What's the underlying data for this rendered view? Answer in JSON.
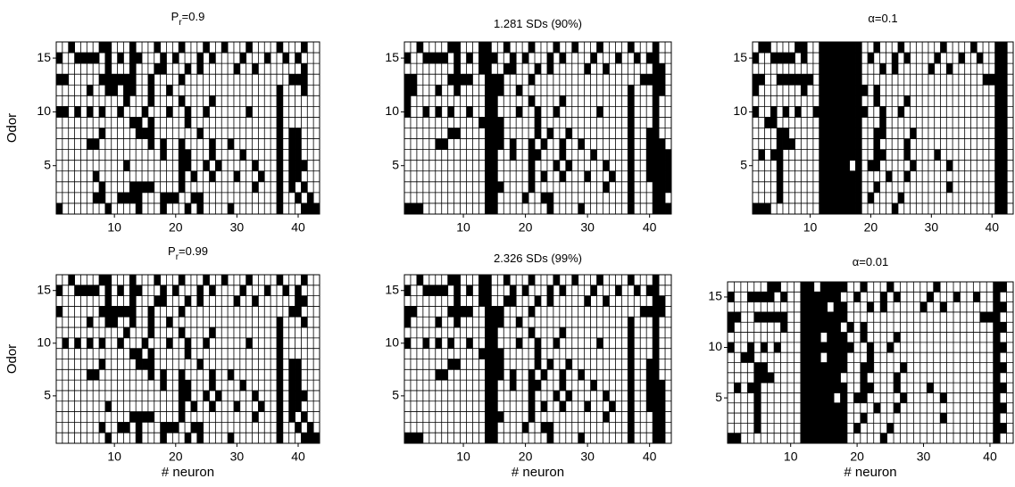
{
  "chart_data": [
    {
      "type": "heatmap",
      "title_main": "P",
      "title_subscript": "r",
      "title_suffix": "=0.9",
      "ylabel": "Odor",
      "xlim": [
        0.5,
        43.5
      ],
      "ylim": [
        0.5,
        16.5
      ],
      "xticks": [
        10,
        20,
        30,
        40
      ],
      "yticks": [
        5,
        10,
        15
      ],
      "color": "#000000",
      "rows": [
        [
          3,
          8,
          9,
          13,
          17,
          21,
          25,
          28,
          32,
          37,
          41
        ],
        [
          1,
          4,
          5,
          6,
          7,
          9,
          11,
          13,
          14,
          18,
          20,
          24,
          26,
          31,
          35,
          38,
          40
        ],
        [
          9,
          13,
          17,
          18,
          22,
          24,
          30,
          33,
          41
        ],
        [
          1,
          2,
          8,
          9,
          10,
          11,
          12,
          13,
          16,
          21,
          39,
          40,
          41
        ],
        [
          6,
          9,
          10,
          12,
          13,
          16,
          19,
          37,
          41
        ],
        [
          12,
          16,
          21,
          26,
          37
        ],
        [
          1,
          2,
          4,
          6,
          8,
          11,
          15,
          19,
          22,
          25,
          32,
          37
        ],
        [
          13,
          14,
          16,
          22,
          37
        ],
        [
          8,
          14,
          15,
          16,
          24,
          37,
          39,
          40
        ],
        [
          6,
          7,
          16,
          18,
          21,
          26,
          29,
          37,
          39,
          40
        ],
        [
          18,
          21,
          22,
          26,
          31,
          37,
          39,
          40
        ],
        [
          12,
          21,
          22,
          25,
          27,
          33,
          37,
          39,
          40,
          41
        ],
        [
          7,
          21,
          23,
          26,
          30,
          34,
          37,
          39,
          40
        ],
        [
          8,
          13,
          14,
          15,
          16,
          21,
          33,
          37,
          39,
          41
        ],
        [
          7,
          8,
          11,
          12,
          13,
          14,
          18,
          19,
          20,
          23,
          24,
          37,
          40,
          42
        ],
        [
          1,
          9,
          14,
          18,
          22,
          24,
          29,
          37,
          41,
          42,
          43
        ]
      ]
    },
    {
      "type": "heatmap",
      "title_main": "1.281 SDs (90%)",
      "xlim": [
        0.5,
        43.5
      ],
      "ylim": [
        0.5,
        16.5
      ],
      "xticks": [
        10,
        20,
        30,
        40
      ],
      "yticks": [
        5,
        10,
        15
      ],
      "color": "#000000",
      "rows": [
        [
          3,
          8,
          9,
          13,
          14,
          17,
          21,
          25,
          28,
          32,
          37,
          41
        ],
        [
          1,
          4,
          5,
          6,
          7,
          9,
          11,
          13,
          14,
          15,
          18,
          20,
          24,
          26,
          31,
          35,
          38,
          40,
          41
        ],
        [
          9,
          13,
          14,
          17,
          18,
          22,
          24,
          30,
          33,
          41,
          42
        ],
        [
          1,
          2,
          8,
          9,
          10,
          11,
          14,
          15,
          16,
          21,
          39,
          40,
          41,
          42
        ],
        [
          1,
          2,
          6,
          9,
          14,
          15,
          16,
          19,
          37,
          41,
          42
        ],
        [
          1,
          14,
          15,
          21,
          26,
          37,
          41
        ],
        [
          1,
          4,
          6,
          8,
          11,
          14,
          15,
          19,
          22,
          25,
          32,
          37,
          41
        ],
        [
          13,
          14,
          15,
          16,
          22,
          37,
          41
        ],
        [
          8,
          9,
          14,
          15,
          16,
          22,
          24,
          27,
          37,
          40,
          41
        ],
        [
          6,
          7,
          14,
          15,
          16,
          18,
          21,
          23,
          26,
          29,
          37,
          40,
          41,
          42
        ],
        [
          14,
          15,
          18,
          21,
          22,
          26,
          31,
          37,
          40,
          41,
          42,
          43
        ],
        [
          14,
          15,
          21,
          25,
          27,
          33,
          37,
          40,
          41,
          42,
          43
        ],
        [
          14,
          15,
          21,
          23,
          26,
          30,
          34,
          37,
          40,
          41,
          42,
          43
        ],
        [
          14,
          15,
          16,
          21,
          33,
          37,
          41,
          42,
          43
        ],
        [
          14,
          15,
          20,
          23,
          24,
          37,
          41,
          42
        ],
        [
          1,
          2,
          3,
          14,
          15,
          24,
          29,
          37,
          41,
          42,
          43
        ]
      ]
    },
    {
      "type": "heatmap",
      "title_main": "α=0.1",
      "xlim": [
        0.5,
        43.5
      ],
      "ylim": [
        0.5,
        16.5
      ],
      "xticks": [
        10,
        20,
        30,
        40
      ],
      "yticks": [
        5,
        10,
        15
      ],
      "color": "#000000",
      "rows": [
        [
          2,
          3,
          8,
          9,
          12,
          13,
          14,
          15,
          16,
          17,
          18,
          21,
          25,
          32,
          37,
          41,
          42
        ],
        [
          1,
          4,
          5,
          6,
          7,
          9,
          12,
          13,
          14,
          15,
          16,
          17,
          18,
          20,
          24,
          26,
          31,
          35,
          38,
          41,
          42
        ],
        [
          12,
          13,
          14,
          15,
          16,
          17,
          18,
          22,
          24,
          30,
          33,
          41,
          42
        ],
        [
          1,
          2,
          5,
          6,
          7,
          8,
          9,
          10,
          12,
          13,
          14,
          15,
          16,
          17,
          18,
          39,
          40,
          41,
          42
        ],
        [
          1,
          9,
          12,
          13,
          14,
          15,
          16,
          17,
          18,
          19,
          21,
          41,
          42
        ],
        [
          12,
          13,
          14,
          15,
          16,
          17,
          18,
          21,
          26,
          41,
          42
        ],
        [
          1,
          4,
          6,
          8,
          11,
          12,
          13,
          14,
          15,
          16,
          17,
          18,
          19,
          22,
          25,
          41,
          42
        ],
        [
          3,
          4,
          12,
          13,
          14,
          15,
          16,
          17,
          18,
          22,
          41,
          42
        ],
        [
          5,
          6,
          12,
          13,
          14,
          15,
          16,
          17,
          18,
          21,
          22,
          27,
          41,
          42
        ],
        [
          5,
          6,
          7,
          12,
          13,
          14,
          15,
          16,
          17,
          18,
          21,
          26,
          41,
          42
        ],
        [
          2,
          4,
          5,
          12,
          13,
          14,
          15,
          16,
          17,
          18,
          21,
          22,
          26,
          31,
          41,
          42
        ],
        [
          5,
          12,
          13,
          14,
          15,
          16,
          18,
          20,
          21,
          27,
          33,
          41,
          42
        ],
        [
          5,
          12,
          13,
          14,
          15,
          16,
          17,
          18,
          23,
          26,
          41,
          42
        ],
        [
          5,
          12,
          13,
          14,
          15,
          16,
          17,
          18,
          21,
          33,
          41,
          42
        ],
        [
          5,
          12,
          13,
          14,
          15,
          16,
          17,
          18,
          20,
          25,
          41,
          42
        ],
        [
          1,
          2,
          3,
          12,
          13,
          14,
          15,
          16,
          17,
          18,
          24,
          41,
          42
        ]
      ]
    },
    {
      "type": "heatmap",
      "title_main": "P",
      "title_subscript": "r",
      "title_suffix": "=0.99",
      "ylabel": "Odor",
      "xlabel": "# neuron",
      "xlim": [
        0.5,
        43.5
      ],
      "ylim": [
        0.5,
        16.5
      ],
      "xticks": [
        10,
        20,
        30,
        40
      ],
      "yticks": [
        5,
        10,
        15
      ],
      "color": "#000000",
      "rows": [
        [
          3,
          8,
          9,
          13,
          17,
          21,
          25,
          28,
          32,
          37,
          41
        ],
        [
          1,
          4,
          5,
          6,
          7,
          9,
          11,
          13,
          14,
          18,
          20,
          24,
          26,
          31,
          35,
          38,
          40
        ],
        [
          9,
          13,
          17,
          18,
          22,
          24,
          30,
          33,
          40,
          41
        ],
        [
          1,
          8,
          9,
          10,
          11,
          12,
          13,
          16,
          21,
          39,
          40
        ],
        [
          6,
          9,
          10,
          13,
          16,
          19,
          37,
          41
        ],
        [
          12,
          16,
          21,
          26,
          37
        ],
        [
          2,
          4,
          6,
          8,
          11,
          15,
          19,
          22,
          25,
          32,
          37
        ],
        [
          13,
          14,
          16,
          22,
          37
        ],
        [
          8,
          14,
          15,
          16,
          24,
          37,
          39,
          40
        ],
        [
          6,
          7,
          16,
          18,
          21,
          26,
          29,
          37,
          39,
          40
        ],
        [
          18,
          21,
          22,
          26,
          31,
          37,
          39,
          40
        ],
        [
          21,
          22,
          25,
          27,
          33,
          37,
          39,
          40,
          41
        ],
        [
          9,
          21,
          23,
          26,
          30,
          34,
          37,
          39,
          40
        ],
        [
          13,
          14,
          15,
          16,
          21,
          33,
          37,
          39,
          41
        ],
        [
          8,
          11,
          12,
          14,
          18,
          19,
          20,
          23,
          24,
          37,
          40,
          42
        ],
        [
          9,
          14,
          18,
          22,
          24,
          29,
          37,
          41,
          42,
          43
        ]
      ]
    },
    {
      "type": "heatmap",
      "title_main": "2.326 SDs (99%)",
      "xlabel": "# neuron",
      "xlim": [
        0.5,
        43.5
      ],
      "ylim": [
        0.5,
        16.5
      ],
      "xticks": [
        10,
        20,
        30,
        40
      ],
      "yticks": [
        5,
        10,
        15
      ],
      "color": "#000000",
      "rows": [
        [
          3,
          8,
          9,
          13,
          14,
          17,
          21,
          25,
          28,
          32,
          37,
          41
        ],
        [
          1,
          4,
          5,
          6,
          7,
          9,
          11,
          13,
          14,
          18,
          20,
          24,
          26,
          31,
          35,
          38,
          40,
          41
        ],
        [
          9,
          13,
          14,
          17,
          18,
          22,
          24,
          30,
          33,
          41,
          42
        ],
        [
          1,
          2,
          8,
          9,
          10,
          11,
          14,
          15,
          16,
          21,
          39,
          40,
          41,
          42
        ],
        [
          1,
          6,
          9,
          14,
          15,
          16,
          19,
          37,
          41
        ],
        [
          14,
          15,
          21,
          26,
          37,
          41
        ],
        [
          1,
          4,
          6,
          8,
          11,
          14,
          15,
          19,
          22,
          25,
          32,
          37,
          41
        ],
        [
          13,
          14,
          15,
          16,
          22,
          37,
          41
        ],
        [
          8,
          9,
          14,
          15,
          16,
          22,
          24,
          27,
          37,
          40,
          41
        ],
        [
          6,
          7,
          14,
          15,
          16,
          18,
          21,
          23,
          26,
          29,
          37,
          40,
          41
        ],
        [
          14,
          15,
          18,
          21,
          22,
          26,
          31,
          37,
          40,
          41,
          42
        ],
        [
          14,
          15,
          21,
          25,
          27,
          33,
          37,
          40,
          41,
          42
        ],
        [
          14,
          15,
          21,
          23,
          26,
          30,
          34,
          37,
          40,
          41,
          42
        ],
        [
          14,
          15,
          16,
          21,
          33,
          37,
          41,
          42
        ],
        [
          14,
          15,
          20,
          23,
          24,
          37,
          41,
          42
        ],
        [
          1,
          2,
          3,
          14,
          15,
          24,
          29,
          37,
          41,
          42
        ]
      ]
    },
    {
      "type": "heatmap",
      "title_main": "α=0.01",
      "xlabel": "# neuron",
      "xlim": [
        0.5,
        43.5
      ],
      "ylim": [
        0.5,
        16.5
      ],
      "xticks": [
        10,
        20,
        30,
        40
      ],
      "yticks": [
        5,
        10,
        15
      ],
      "color": "#000000",
      "rows": [
        [
          7,
          8,
          12,
          13,
          15,
          16,
          17,
          18,
          21,
          25,
          32,
          41,
          42
        ],
        [
          1,
          4,
          5,
          6,
          7,
          9,
          12,
          13,
          14,
          15,
          16,
          17,
          20,
          24,
          26,
          31,
          35,
          38,
          41
        ],
        [
          12,
          13,
          14,
          15,
          17,
          18,
          22,
          24,
          30,
          33,
          41,
          42
        ],
        [
          1,
          2,
          5,
          6,
          7,
          8,
          9,
          12,
          13,
          14,
          15,
          16,
          17,
          18,
          39,
          40,
          41
        ],
        [
          1,
          9,
          12,
          13,
          14,
          15,
          16,
          17,
          19,
          21,
          41,
          42
        ],
        [
          12,
          13,
          14,
          16,
          17,
          18,
          21,
          26,
          41
        ],
        [
          1,
          4,
          6,
          8,
          12,
          13,
          14,
          15,
          16,
          17,
          18,
          19,
          22,
          25,
          41,
          42
        ],
        [
          3,
          4,
          12,
          13,
          14,
          16,
          17,
          18,
          22,
          41
        ],
        [
          5,
          6,
          12,
          13,
          14,
          15,
          16,
          17,
          18,
          21,
          22,
          27,
          41,
          42
        ],
        [
          5,
          6,
          7,
          12,
          13,
          14,
          15,
          16,
          17,
          21,
          26,
          41
        ],
        [
          2,
          4,
          5,
          12,
          13,
          14,
          15,
          16,
          17,
          18,
          21,
          22,
          26,
          31,
          41,
          42
        ],
        [
          5,
          12,
          13,
          14,
          15,
          16,
          18,
          20,
          21,
          27,
          33,
          41
        ],
        [
          5,
          12,
          13,
          14,
          15,
          16,
          17,
          18,
          23,
          26,
          41,
          42
        ],
        [
          5,
          12,
          13,
          14,
          15,
          16,
          17,
          18,
          21,
          33,
          41
        ],
        [
          5,
          12,
          13,
          14,
          15,
          16,
          17,
          18,
          20,
          25,
          41,
          42
        ],
        [
          1,
          2,
          12,
          13,
          14,
          15,
          16,
          17,
          18,
          24,
          41
        ]
      ]
    }
  ]
}
